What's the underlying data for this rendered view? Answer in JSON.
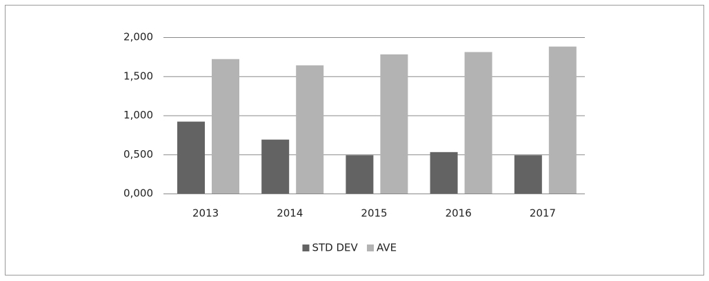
{
  "chart_data": {
    "type": "bar",
    "categories": [
      "2013",
      "2014",
      "2015",
      "2016",
      "2017"
    ],
    "series": [
      {
        "name": "STD DEV",
        "color": "#636363",
        "values": [
          0.92,
          0.69,
          0.49,
          0.53,
          0.49
        ]
      },
      {
        "name": "AVE",
        "color": "#b3b3b3",
        "values": [
          1.72,
          1.64,
          1.78,
          1.81,
          1.88
        ]
      }
    ],
    "ylim": [
      0,
      2
    ],
    "yticks": [
      {
        "value": 0,
        "label": "0,000"
      },
      {
        "value": 0.5,
        "label": "0,500"
      },
      {
        "value": 1,
        "label": "1,000"
      },
      {
        "value": 1.5,
        "label": "1,500"
      },
      {
        "value": 2,
        "label": "2,000"
      }
    ],
    "grid": true,
    "legend": "bottom"
  }
}
